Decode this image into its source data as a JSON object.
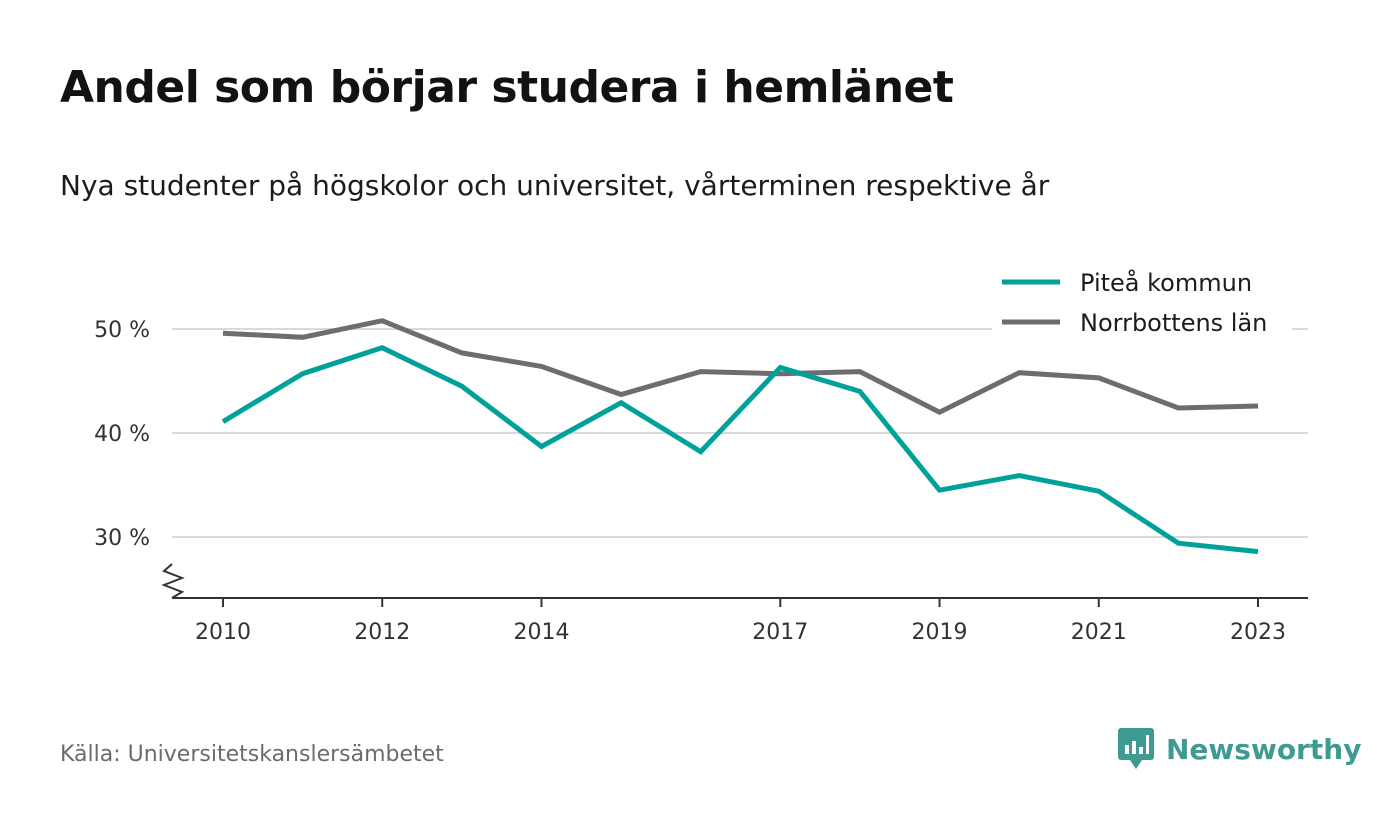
{
  "title": "Andel som börjar studera i hemlänet",
  "subtitle": "Nya studenter på högskolor och universitet, vårterminen respektive år",
  "source": "Källa: Universitetskanslersämbetet",
  "brand": {
    "name": "Newsworthy",
    "icon": "newsworthy-logo-icon",
    "color": "#3e9a93"
  },
  "chart_data": {
    "type": "line",
    "title": "Andel som börjar studera i hemlänet",
    "subtitle": "Nya studenter på högskolor och universitet, vårterminen respektive år",
    "x": [
      2010,
      2011,
      2012,
      2013,
      2014,
      2015,
      2016,
      2017,
      2018,
      2019,
      2020,
      2021,
      2022,
      2023
    ],
    "x_tick_labels": [
      "2010",
      "2012",
      "2014",
      "2017",
      "2019",
      "2021",
      "2023"
    ],
    "y_ticks": [
      30,
      40,
      50
    ],
    "y_tick_labels": [
      "30 %",
      "40 %",
      "50 %"
    ],
    "ylim": [
      24,
      53
    ],
    "y_axis_break": true,
    "grid": true,
    "legend_position": "top-right",
    "series": [
      {
        "name": "Piteå kommun",
        "color": "#00a19a",
        "values": [
          41.1,
          45.7,
          48.2,
          44.5,
          38.7,
          42.9,
          38.2,
          46.3,
          44.0,
          34.5,
          35.9,
          34.4,
          29.4,
          28.6
        ]
      },
      {
        "name": "Norrbottens län",
        "color": "#6e6c73",
        "values": [
          49.6,
          49.2,
          50.8,
          47.7,
          46.4,
          43.7,
          45.9,
          45.7,
          45.9,
          42.0,
          45.8,
          45.3,
          42.4,
          42.6
        ]
      }
    ]
  }
}
